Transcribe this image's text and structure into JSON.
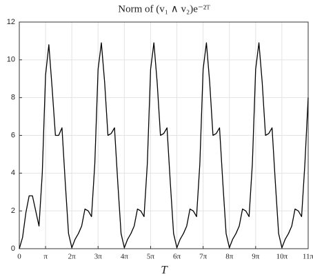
{
  "chart_data": {
    "type": "line",
    "title": "Norm of (v₁ ∧ v₂)e⁻²ᵀ",
    "x_label": "T",
    "x": [
      0,
      0.393,
      0.785,
      1.178,
      1.571,
      1.963,
      2.356,
      2.749,
      3.142,
      3.534,
      3.927,
      4.32,
      4.712,
      5.105,
      5.498,
      5.89,
      6.283,
      6.676,
      7.069,
      7.461,
      7.854,
      8.247,
      8.639,
      9.032,
      9.425,
      9.817,
      10.21,
      10.603,
      10.996,
      11.388,
      11.781,
      12.174,
      12.566,
      12.959,
      13.352,
      13.744,
      14.137,
      14.53,
      14.923,
      15.315,
      15.708,
      16.101,
      16.493,
      16.886,
      17.279,
      17.671,
      18.064,
      18.457,
      18.85,
      19.242,
      19.635,
      20.028,
      20.42,
      20.813,
      21.206,
      21.598,
      21.991,
      22.384,
      22.777,
      23.169,
      23.562,
      23.955,
      24.347,
      24.74,
      25.133,
      25.525,
      25.918,
      26.311,
      26.704,
      27.096,
      27.489,
      27.882,
      28.274,
      28.667,
      29.06,
      29.452,
      29.845,
      30.238,
      30.631,
      31.023,
      31.416,
      31.809,
      32.201,
      32.594,
      32.987,
      33.379,
      33.772,
      34.165,
      34.558
    ],
    "series": [
      {
        "color": "#000000",
        "values": [
          0,
          0.6,
          1.9,
          2.8,
          2.8,
          2.0,
          1.2,
          4.0,
          9.2,
          10.8,
          8.5,
          6.0,
          6.0,
          6.4,
          3.5,
          0.8,
          0.05,
          0.5,
          0.8,
          1.2,
          2.1,
          2.0,
          1.7,
          4.5,
          9.5,
          10.9,
          8.8,
          6.0,
          6.1,
          6.4,
          3.5,
          0.8,
          0.05,
          0.5,
          0.8,
          1.2,
          2.1,
          2.0,
          1.7,
          4.5,
          9.5,
          10.9,
          8.8,
          6.0,
          6.1,
          6.4,
          3.5,
          0.8,
          0.05,
          0.5,
          0.8,
          1.2,
          2.1,
          2.0,
          1.7,
          4.5,
          9.5,
          10.9,
          8.8,
          6.0,
          6.1,
          6.4,
          3.5,
          0.8,
          0.05,
          0.5,
          0.8,
          1.2,
          2.1,
          2.0,
          1.7,
          4.5,
          9.5,
          10.9,
          8.8,
          6.0,
          6.1,
          6.4,
          3.5,
          0.8,
          0.05,
          0.5,
          0.8,
          1.2,
          2.1,
          2.0,
          1.7,
          4.5,
          8.0
        ]
      }
    ],
    "xlim": [
      0,
      34.558
    ],
    "xticks": [
      0,
      {
        "value": 3.142,
        "label": "π"
      },
      {
        "value": 6.283,
        "label": "2π"
      },
      {
        "value": 9.425,
        "label": "3π"
      },
      {
        "value": 12.566,
        "label": "4π"
      },
      {
        "value": 15.708,
        "label": "5π"
      },
      {
        "value": 18.85,
        "label": "6π"
      },
      {
        "value": 21.991,
        "label": "7π"
      },
      {
        "value": 25.133,
        "label": "8π"
      },
      {
        "value": 28.274,
        "label": "9π"
      },
      {
        "value": 31.416,
        "label": "10π"
      },
      {
        "value": 34.558,
        "label": "11π"
      }
    ],
    "ylim": [
      0,
      12
    ],
    "yticks": [
      0,
      2,
      4,
      6,
      8,
      10,
      12
    ],
    "grid": true
  }
}
